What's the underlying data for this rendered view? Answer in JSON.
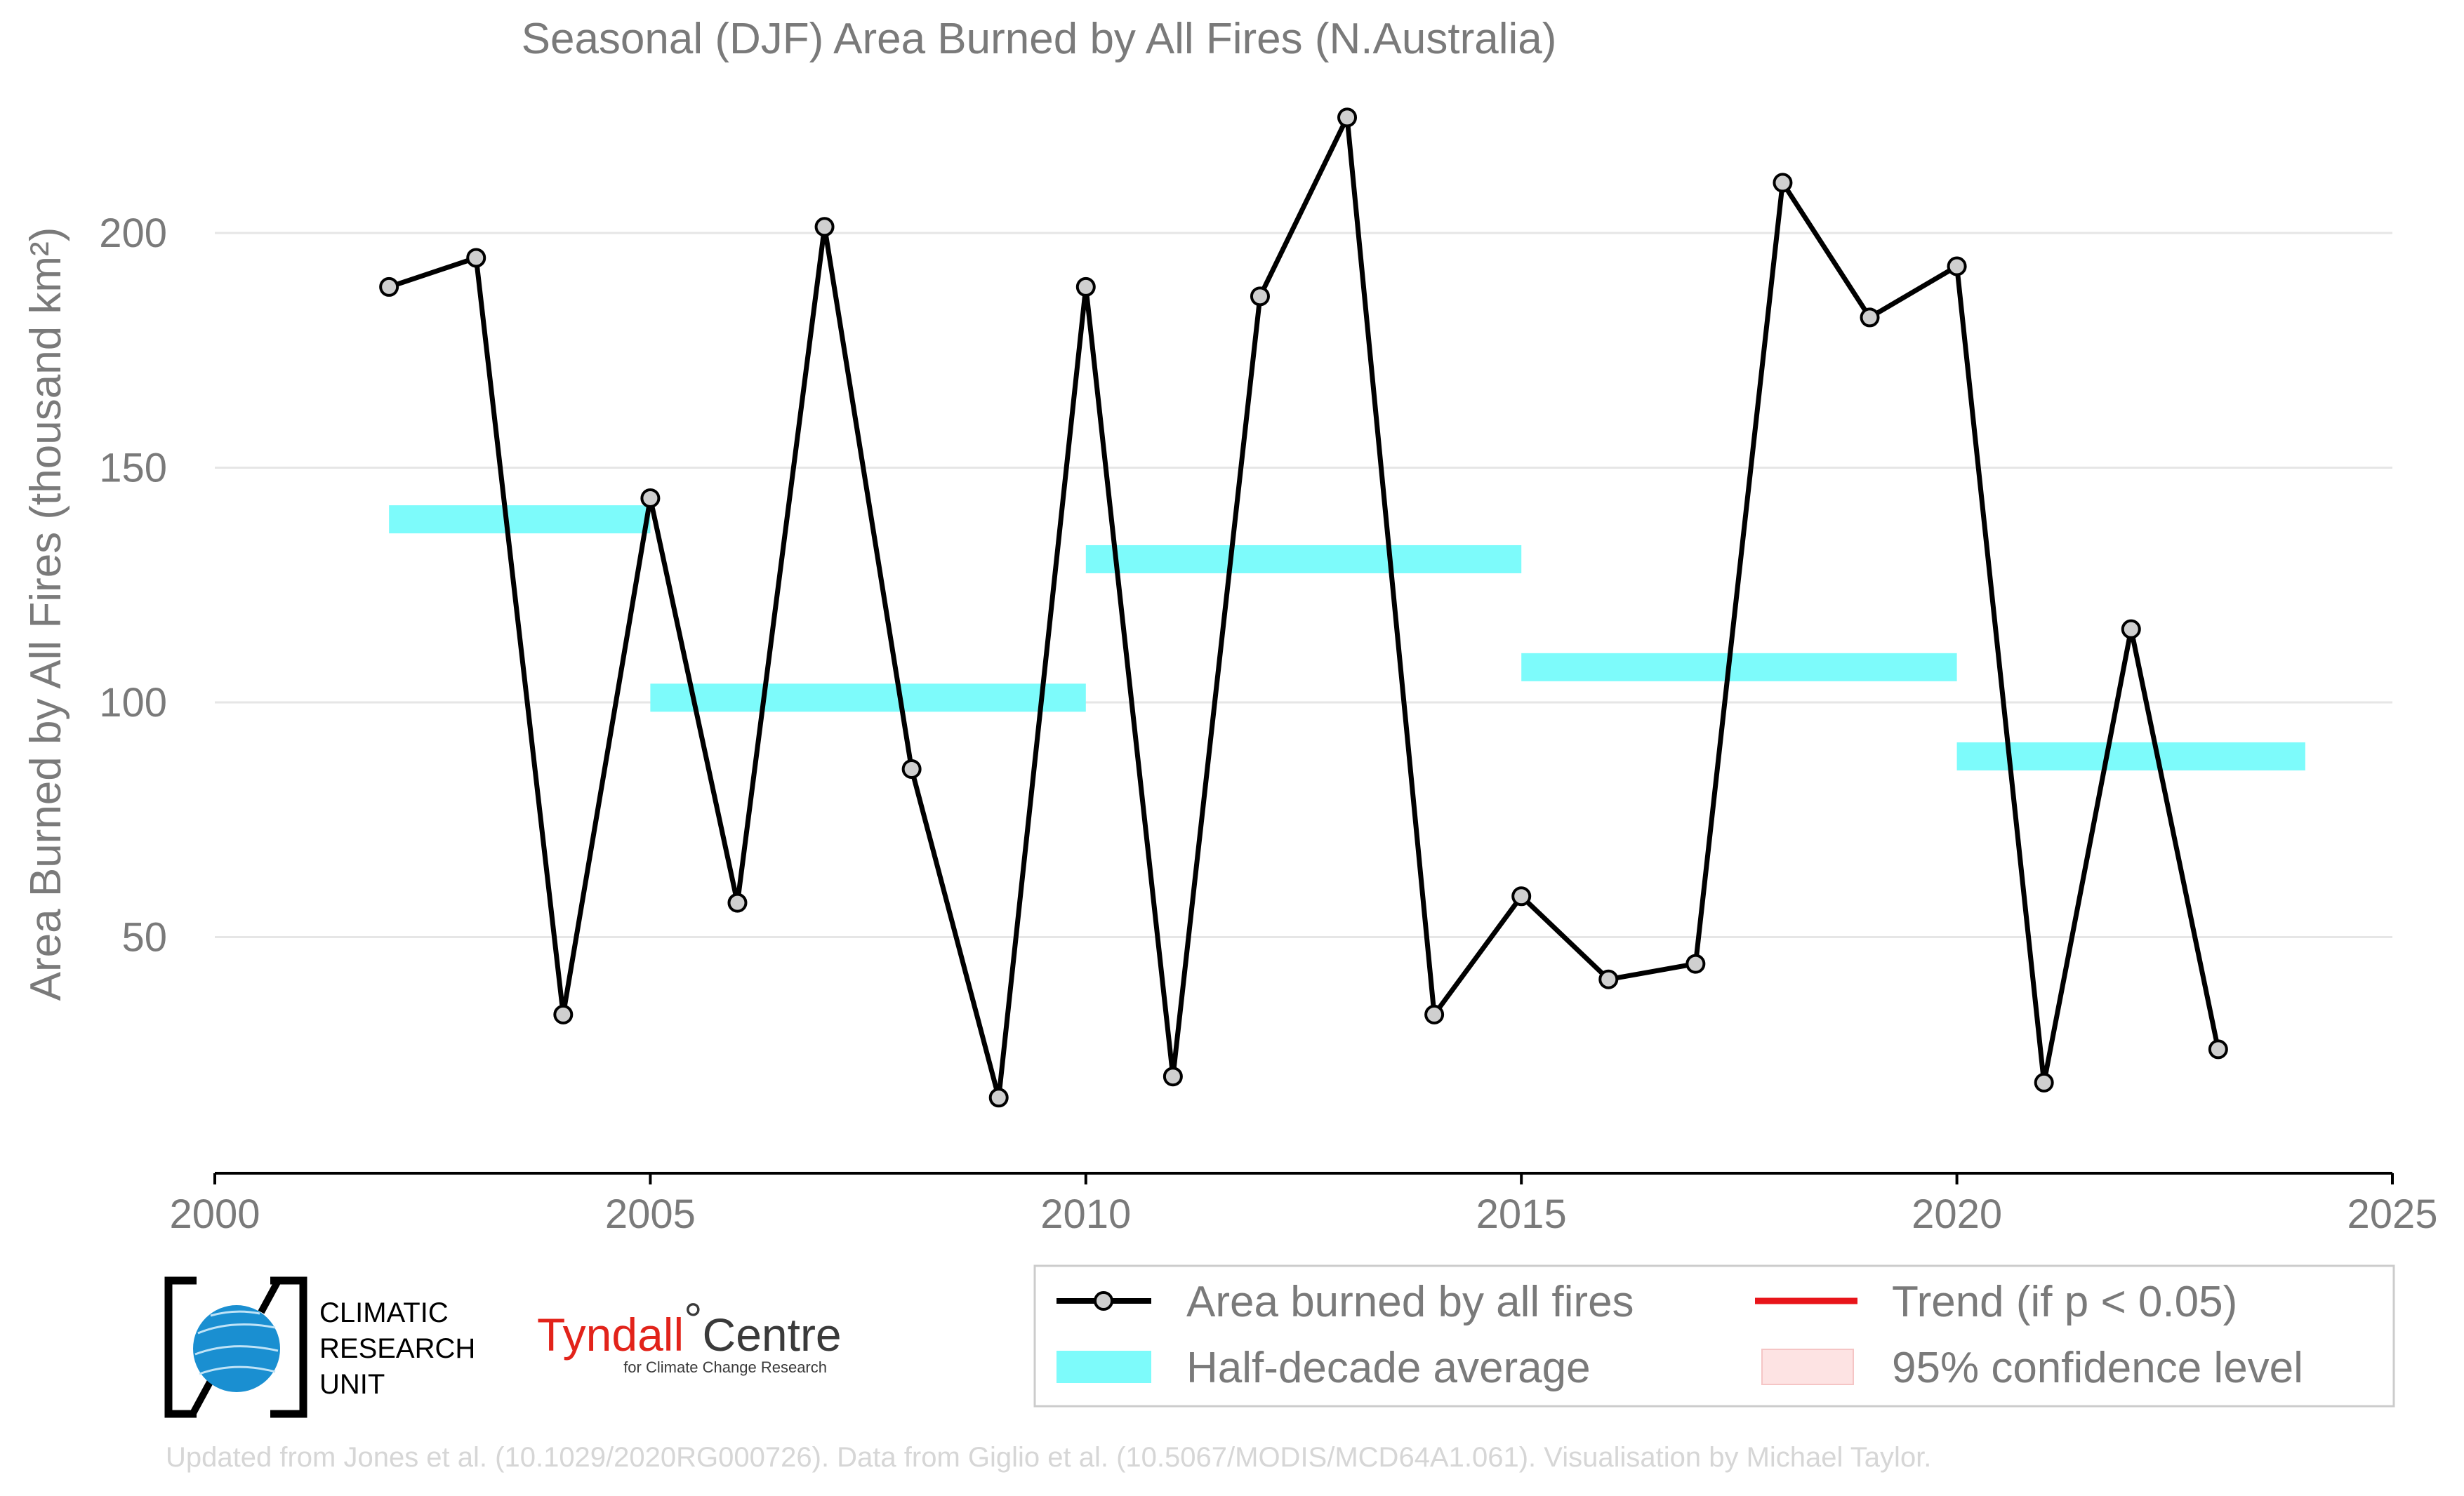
{
  "chart_data": {
    "type": "line",
    "title": "Seasonal (DJF) Area Burned by All Fires (N.Australia)",
    "ylabel": "Area Burned by All Fires (thousand km²)",
    "xlabel": "",
    "xlim": [
      2000,
      2025
    ],
    "ylim": [
      0,
      225
    ],
    "x_ticks": [
      "2000",
      "2005",
      "2010",
      "2015",
      "2020",
      "2025"
    ],
    "y_ticks": [
      "50",
      "100",
      "150",
      "200"
    ],
    "grid": "horizontal",
    "series": [
      {
        "name": "Area burned by all fires",
        "color": "#000000",
        "x": [
          2002,
          2003,
          2004,
          2005,
          2006,
          2007,
          2008,
          2009,
          2010,
          2011,
          2012,
          2013,
          2014,
          2015,
          2016,
          2017,
          2018,
          2019,
          2020,
          2021,
          2022,
          2023
        ],
        "values": [
          188.5,
          194.7,
          33.5,
          143.5,
          57.3,
          201.3,
          85.8,
          15.8,
          188.5,
          20.3,
          186.5,
          224.6,
          33.5,
          58.7,
          41.0,
          44.3,
          210.7,
          182.0,
          192.9,
          19.0,
          115.6,
          26.1
        ]
      }
    ],
    "half_decade_average": {
      "name": "Half-decade average",
      "color": "#7dfbfb",
      "segments": [
        {
          "x_start": 2002,
          "x_end": 2005,
          "value": 139.0
        },
        {
          "x_start": 2005,
          "x_end": 2010,
          "value": 101.0
        },
        {
          "x_start": 2010,
          "x_end": 2015,
          "value": 130.5
        },
        {
          "x_start": 2015,
          "x_end": 2020,
          "value": 107.5
        },
        {
          "x_start": 2020,
          "x_end": 2024,
          "value": 88.5
        }
      ]
    },
    "legend": {
      "placement": "bottom-right",
      "items": [
        {
          "label": "Area burned by all fires",
          "kind": "line-marker",
          "color": "#000000"
        },
        {
          "label": "Trend (if p < 0.05)",
          "kind": "line",
          "color": "#e8141a"
        },
        {
          "label": "Half-decade average",
          "kind": "band",
          "color": "#7dfbfb"
        },
        {
          "label": "95% confidence level",
          "kind": "patch",
          "color": "#fde3e3"
        }
      ]
    }
  },
  "logos": {
    "cru": {
      "line1": "CLIMATIC",
      "line2": "RESEARCH",
      "line3": "UNIT"
    },
    "tyndall": {
      "name_red": "Tyndall",
      "degree": "°",
      "name_dark": "Centre",
      "sub": "for Climate Change Research"
    }
  },
  "footer": "Updated from Jones et al. (10.1029/2020RG000726). Data from Giglio et al. (10.5067/MODIS/MCD64A1.061). Visualisation by Michael Taylor.",
  "colors": {
    "axis_text": "#7a7a7a",
    "grid": "#e6e6e6",
    "footer_text": "#d6d6d6",
    "marker_fill": "#cfcfcf",
    "cru_blue": "#1a8fd1"
  }
}
